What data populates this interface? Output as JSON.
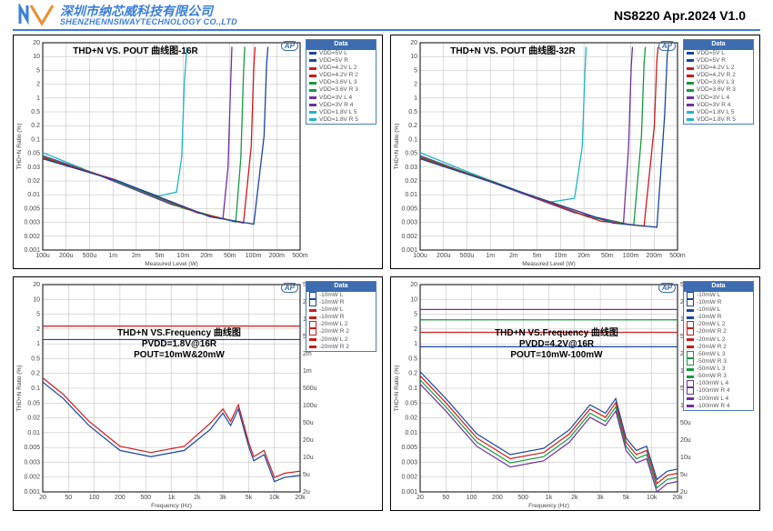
{
  "header": {
    "cn_name": "深圳市纳芯威科技有限公司",
    "en_name": "SHENZHENNSIWAYTECHNOLOGY CO.,LTD",
    "docid": "NS8220 Apr.2024 V1.0"
  },
  "colors": {
    "grid": "#c4c4c4",
    "border": "#000",
    "logo_blue": "#3a7edb",
    "logo_orange": "#f08b2f",
    "legend_header": "#3d6db0"
  },
  "panel_top_left": {
    "title": "THD+N VS. POUT 曲线图-16R",
    "xlabel": "Measured Level (W)",
    "ylabel": "THD+N Ratio (%)",
    "x_ticks": [
      "100u",
      "200u",
      "500u",
      "1m",
      "2m",
      "5m",
      "10m",
      "20m",
      "50m",
      "100m",
      "200m",
      "500m"
    ],
    "y_ticks": [
      "0.001",
      "0.002",
      "0.003",
      "0.005",
      "0.01",
      "0.02",
      "0.03",
      "0.05",
      "0.1",
      "0.2",
      "0.5",
      "1",
      "2",
      "5",
      "10",
      "20"
    ],
    "legend": [
      {
        "c": "#1846a0",
        "t": "VDD=5V  L"
      },
      {
        "c": "#1846a0",
        "t": "VDD=5V  R"
      },
      {
        "c": "#d01919",
        "t": "VDD=4.2V  L 2"
      },
      {
        "c": "#d01919",
        "t": "VDD=4.2V  R 2"
      },
      {
        "c": "#139a3e",
        "t": "VDD=3.6V  L 3"
      },
      {
        "c": "#139a3e",
        "t": "VDD=3.6V  R 3"
      },
      {
        "c": "#7030a0",
        "t": "VDD=3V  L 4"
      },
      {
        "c": "#7030a0",
        "t": "VDD=3V  R 4"
      },
      {
        "c": "#1fb5c9",
        "t": "VDD=1.8V  L 5"
      },
      {
        "c": "#1fb5c9",
        "t": "VDD=1.8V  R 5"
      }
    ],
    "curves": [
      {
        "c": "#1fb5c9",
        "pts": [
          [
            0,
            0.53
          ],
          [
            0.18,
            0.62
          ],
          [
            0.45,
            0.74
          ],
          [
            0.52,
            0.72
          ],
          [
            0.54,
            0.55
          ],
          [
            0.55,
            0.2
          ],
          [
            0.56,
            0.02
          ]
        ]
      },
      {
        "c": "#7030a0",
        "pts": [
          [
            0,
            0.545
          ],
          [
            0.2,
            0.63
          ],
          [
            0.5,
            0.78
          ],
          [
            0.7,
            0.85
          ],
          [
            0.72,
            0.6
          ],
          [
            0.73,
            0.2
          ],
          [
            0.735,
            0.02
          ]
        ]
      },
      {
        "c": "#139a3e",
        "pts": [
          [
            0,
            0.55
          ],
          [
            0.25,
            0.65
          ],
          [
            0.55,
            0.8
          ],
          [
            0.75,
            0.865
          ],
          [
            0.77,
            0.55
          ],
          [
            0.78,
            0.15
          ],
          [
            0.785,
            0.02
          ]
        ]
      },
      {
        "c": "#d01919",
        "pts": [
          [
            0,
            0.555
          ],
          [
            0.28,
            0.66
          ],
          [
            0.6,
            0.82
          ],
          [
            0.78,
            0.87
          ],
          [
            0.81,
            0.5
          ],
          [
            0.82,
            0.12
          ],
          [
            0.825,
            0.02
          ]
        ]
      },
      {
        "c": "#1846a0",
        "pts": [
          [
            0,
            0.56
          ],
          [
            0.3,
            0.67
          ],
          [
            0.65,
            0.84
          ],
          [
            0.82,
            0.875
          ],
          [
            0.86,
            0.45
          ],
          [
            0.87,
            0.1
          ],
          [
            0.875,
            0.02
          ]
        ]
      }
    ]
  },
  "panel_top_right": {
    "title": "THD+N VS. POUT 曲线图-32R",
    "xlabel": "Measured Level (W)",
    "ylabel": "THD+N Ratio (%)",
    "x_ticks": [
      "100u",
      "200u",
      "500u",
      "1m",
      "2m",
      "5m",
      "10m",
      "20m",
      "50m",
      "100m",
      "200m",
      "500m"
    ],
    "y_ticks": [
      "0.001",
      "0.002",
      "0.003",
      "0.005",
      "0.01",
      "0.02",
      "0.03",
      "0.05",
      "0.1",
      "0.2",
      "0.5",
      "1",
      "2",
      "5",
      "10",
      "20"
    ],
    "legend": [
      {
        "c": "#1846a0",
        "t": "VDD=5V  L"
      },
      {
        "c": "#1846a0",
        "t": "VDD=5V  R"
      },
      {
        "c": "#d01919",
        "t": "VDD=4.2V  L 2"
      },
      {
        "c": "#d01919",
        "t": "VDD=4.2V  R 2"
      },
      {
        "c": "#139a3e",
        "t": "VDD=3.6V  L 3"
      },
      {
        "c": "#139a3e",
        "t": "VDD=3.6V  R 3"
      },
      {
        "c": "#7030a0",
        "t": "VDD=3V  L 4"
      },
      {
        "c": "#7030a0",
        "t": "VDD=3V  R 4"
      },
      {
        "c": "#1fb5c9",
        "t": "VDD=1.8V  L 5"
      },
      {
        "c": "#1fb5c9",
        "t": "VDD=1.8V  R 5"
      }
    ],
    "curves": [
      {
        "c": "#1fb5c9",
        "pts": [
          [
            0,
            0.53
          ],
          [
            0.2,
            0.63
          ],
          [
            0.5,
            0.77
          ],
          [
            0.6,
            0.75
          ],
          [
            0.63,
            0.5
          ],
          [
            0.64,
            0.15
          ],
          [
            0.645,
            0.02
          ]
        ]
      },
      {
        "c": "#7030a0",
        "pts": [
          [
            0,
            0.545
          ],
          [
            0.25,
            0.66
          ],
          [
            0.6,
            0.82
          ],
          [
            0.79,
            0.87
          ],
          [
            0.81,
            0.5
          ],
          [
            0.82,
            0.12
          ],
          [
            0.825,
            0.02
          ]
        ]
      },
      {
        "c": "#139a3e",
        "pts": [
          [
            0,
            0.55
          ],
          [
            0.28,
            0.67
          ],
          [
            0.65,
            0.84
          ],
          [
            0.83,
            0.88
          ],
          [
            0.86,
            0.45
          ],
          [
            0.87,
            0.1
          ],
          [
            0.875,
            0.02
          ]
        ]
      },
      {
        "c": "#d01919",
        "pts": [
          [
            0,
            0.555
          ],
          [
            0.3,
            0.68
          ],
          [
            0.7,
            0.86
          ],
          [
            0.87,
            0.885
          ],
          [
            0.91,
            0.4
          ],
          [
            0.92,
            0.08
          ],
          [
            0.925,
            0.02
          ]
        ]
      },
      {
        "c": "#1846a0",
        "pts": [
          [
            0,
            0.56
          ],
          [
            0.32,
            0.69
          ],
          [
            0.75,
            0.87
          ],
          [
            0.92,
            0.89
          ],
          [
            0.95,
            0.35
          ],
          [
            0.96,
            0.06
          ],
          [
            0.965,
            0.02
          ]
        ]
      }
    ]
  },
  "panel_bottom_left": {
    "title_lines": [
      "THD+N VS.Frequency 曲线图",
      "PVDD=1.8V@16R",
      "POUT=10mW&20mW"
    ],
    "xlabel": "Frequency (Hz)",
    "ylabel": "THD+N Ratio (%)",
    "x_ticks": [
      "20",
      "50",
      "100",
      "200",
      "500",
      "1k",
      "2k",
      "3k",
      "5k",
      "10k",
      "20k"
    ],
    "y_ticks": [
      "0.001",
      "0.002",
      "0.003",
      "0.005",
      "0.01",
      "0.02",
      "0.05",
      "0.1",
      "0.2",
      "0.5",
      "1",
      "2",
      "5",
      "10",
      "20"
    ],
    "right_ticks": [
      "2u",
      "5u",
      "10u",
      "20u",
      "50u",
      "100u",
      "500u",
      "1m",
      "2m",
      "5m",
      "10m",
      "20m",
      "50m"
    ],
    "legend": [
      {
        "c": "#1846a0",
        "t": "-10mW  L",
        "box": true
      },
      {
        "c": "#1846a0",
        "t": "-10mW  R",
        "box": true
      },
      {
        "c": "#d01919",
        "t": "-10mW  L"
      },
      {
        "c": "#d01919",
        "t": "-10mW  R"
      },
      {
        "c": "#d01919",
        "t": "-20mW  L 2",
        "box": true
      },
      {
        "c": "#d01919",
        "t": "-20mW  R 2",
        "box": true
      },
      {
        "c": "#d01919",
        "t": "-20mW  L 2"
      },
      {
        "c": "#d01919",
        "t": "-20mW  R 2"
      }
    ],
    "lvl_curves": [
      {
        "c": "#1846a0",
        "y": 0.265
      },
      {
        "c": "#d01919",
        "y": 0.2
      }
    ],
    "thd_curves": [
      {
        "c": "#1846a0",
        "pts": [
          [
            0,
            0.47
          ],
          [
            0.08,
            0.55
          ],
          [
            0.18,
            0.68
          ],
          [
            0.3,
            0.8
          ],
          [
            0.42,
            0.83
          ],
          [
            0.55,
            0.8
          ],
          [
            0.65,
            0.7
          ],
          [
            0.7,
            0.62
          ],
          [
            0.73,
            0.68
          ],
          [
            0.76,
            0.6
          ],
          [
            0.8,
            0.78
          ],
          [
            0.82,
            0.85
          ],
          [
            0.86,
            0.82
          ],
          [
            0.9,
            0.95
          ],
          [
            0.94,
            0.93
          ],
          [
            1,
            0.92
          ]
        ]
      },
      {
        "c": "#d01919",
        "pts": [
          [
            0,
            0.45
          ],
          [
            0.08,
            0.53
          ],
          [
            0.18,
            0.66
          ],
          [
            0.3,
            0.78
          ],
          [
            0.42,
            0.81
          ],
          [
            0.55,
            0.78
          ],
          [
            0.65,
            0.67
          ],
          [
            0.7,
            0.6
          ],
          [
            0.73,
            0.66
          ],
          [
            0.76,
            0.58
          ],
          [
            0.8,
            0.76
          ],
          [
            0.82,
            0.83
          ],
          [
            0.86,
            0.8
          ],
          [
            0.9,
            0.93
          ],
          [
            0.94,
            0.91
          ],
          [
            1,
            0.9
          ]
        ]
      }
    ]
  },
  "panel_bottom_right": {
    "title_lines": [
      "THD+N VS.Frequency 曲线图",
      "PVDD=4.2V@16R",
      "POUT=10mW-100mW"
    ],
    "xlabel": "Frequency (Hz)",
    "ylabel": "THD+N Ratio (%)",
    "x_ticks": [
      "20",
      "50",
      "100",
      "200",
      "500",
      "1k",
      "2k",
      "3k",
      "5k",
      "10k",
      "20k"
    ],
    "y_ticks": [
      "0.001",
      "0.002",
      "0.003",
      "0.005",
      "0.01",
      "0.02",
      "0.05",
      "0.1",
      "0.2",
      "0.5",
      "1",
      "2",
      "5",
      "10",
      "20"
    ],
    "right_ticks": [
      "2u",
      "5u",
      "10u",
      "20u",
      "50u",
      "100u",
      "500u",
      "1m",
      "2m",
      "5m",
      "10m",
      "20m",
      "50m"
    ],
    "legend": [
      {
        "c": "#1846a0",
        "t": "-10mW  L",
        "box": true
      },
      {
        "c": "#1846a0",
        "t": "-10mW  R",
        "box": true
      },
      {
        "c": "#1846a0",
        "t": "-10mW  L"
      },
      {
        "c": "#1846a0",
        "t": "-10mW  R"
      },
      {
        "c": "#d01919",
        "t": "-20mW  L 2",
        "box": true
      },
      {
        "c": "#d01919",
        "t": "-20mW  R 2",
        "box": true
      },
      {
        "c": "#d01919",
        "t": "-20mW  L 2"
      },
      {
        "c": "#d01919",
        "t": "-20mW  R 2"
      },
      {
        "c": "#139a3e",
        "t": "-50mW  L 3",
        "box": true
      },
      {
        "c": "#139a3e",
        "t": "-50mW  R 3",
        "box": true
      },
      {
        "c": "#139a3e",
        "t": "-50mW  L 3"
      },
      {
        "c": "#139a3e",
        "t": "-50mW  R 3"
      },
      {
        "c": "#7030a0",
        "t": "-100mW  L 4",
        "box": true
      },
      {
        "c": "#7030a0",
        "t": "-100mW  R 4",
        "box": true
      },
      {
        "c": "#7030a0",
        "t": "-100mW  L 4"
      },
      {
        "c": "#7030a0",
        "t": "-100mW  R 4"
      }
    ],
    "lvl_curves": [
      {
        "c": "#7030a0",
        "y": 0.12
      },
      {
        "c": "#139a3e",
        "y": 0.17
      },
      {
        "c": "#d01919",
        "y": 0.23
      },
      {
        "c": "#1846a0",
        "y": 0.3
      }
    ],
    "thd_curves": [
      {
        "c": "#1846a0",
        "pts": [
          [
            0,
            0.42
          ],
          [
            0.1,
            0.55
          ],
          [
            0.22,
            0.72
          ],
          [
            0.35,
            0.82
          ],
          [
            0.48,
            0.79
          ],
          [
            0.58,
            0.7
          ],
          [
            0.66,
            0.58
          ],
          [
            0.72,
            0.62
          ],
          [
            0.76,
            0.55
          ],
          [
            0.8,
            0.74
          ],
          [
            0.84,
            0.8
          ],
          [
            0.88,
            0.78
          ],
          [
            0.92,
            0.94
          ],
          [
            0.96,
            0.9
          ],
          [
            1,
            0.89
          ]
        ]
      },
      {
        "c": "#d01919",
        "pts": [
          [
            0,
            0.44
          ],
          [
            0.1,
            0.57
          ],
          [
            0.22,
            0.74
          ],
          [
            0.35,
            0.84
          ],
          [
            0.48,
            0.81
          ],
          [
            0.58,
            0.72
          ],
          [
            0.66,
            0.6
          ],
          [
            0.72,
            0.64
          ],
          [
            0.76,
            0.57
          ],
          [
            0.8,
            0.76
          ],
          [
            0.84,
            0.82
          ],
          [
            0.88,
            0.8
          ],
          [
            0.92,
            0.96
          ],
          [
            0.96,
            0.92
          ],
          [
            1,
            0.91
          ]
        ]
      },
      {
        "c": "#139a3e",
        "pts": [
          [
            0,
            0.46
          ],
          [
            0.1,
            0.59
          ],
          [
            0.22,
            0.76
          ],
          [
            0.35,
            0.86
          ],
          [
            0.48,
            0.83
          ],
          [
            0.58,
            0.74
          ],
          [
            0.66,
            0.62
          ],
          [
            0.72,
            0.66
          ],
          [
            0.76,
            0.59
          ],
          [
            0.8,
            0.78
          ],
          [
            0.84,
            0.84
          ],
          [
            0.88,
            0.82
          ],
          [
            0.92,
            0.98
          ],
          [
            0.96,
            0.94
          ],
          [
            1,
            0.93
          ]
        ]
      },
      {
        "c": "#7030a0",
        "pts": [
          [
            0,
            0.48
          ],
          [
            0.1,
            0.61
          ],
          [
            0.22,
            0.78
          ],
          [
            0.35,
            0.88
          ],
          [
            0.48,
            0.85
          ],
          [
            0.58,
            0.76
          ],
          [
            0.66,
            0.64
          ],
          [
            0.72,
            0.68
          ],
          [
            0.76,
            0.61
          ],
          [
            0.8,
            0.8
          ],
          [
            0.84,
            0.86
          ],
          [
            0.88,
            0.84
          ],
          [
            0.92,
            1.0
          ],
          [
            0.96,
            0.96
          ],
          [
            1,
            0.95
          ]
        ]
      }
    ]
  }
}
